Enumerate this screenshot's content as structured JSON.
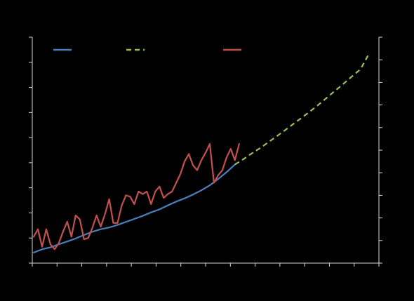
{
  "chart_data": {
    "type": "line",
    "title": "",
    "xlabel": "",
    "ylabel": "",
    "y2label": "",
    "background": "#000000",
    "axis_color": "#d9d9d9",
    "grid": false,
    "legend": "top-left",
    "xlim": [
      0,
      40
    ],
    "ylim": [
      0,
      9
    ],
    "y2lim": [
      0,
      10.5
    ],
    "x_tick_count": 14,
    "y_tick_count": 9,
    "y2_tick_count": 10,
    "series": [
      {
        "name": "",
        "color": "#4a7ebb",
        "dash": false,
        "x": [
          0,
          1,
          2,
          3,
          4,
          5,
          6,
          7,
          8,
          9,
          10,
          11,
          12,
          13,
          14,
          15,
          16,
          17,
          18,
          19,
          20,
          21,
          22,
          23,
          24
        ],
        "y": [
          0.42,
          0.55,
          0.63,
          0.75,
          0.86,
          0.98,
          1.12,
          1.25,
          1.35,
          1.42,
          1.52,
          1.64,
          1.76,
          1.88,
          2.02,
          2.14,
          2.3,
          2.45,
          2.58,
          2.73,
          2.9,
          3.1,
          3.35,
          3.62,
          3.93
        ]
      },
      {
        "name": "",
        "color": "#9bbb59",
        "dash": true,
        "x": [
          24,
          25,
          26,
          27,
          28,
          29,
          30,
          31,
          32,
          33,
          34,
          35,
          36,
          37,
          38,
          39,
          40
        ],
        "y": [
          3.93,
          4.14,
          4.37,
          4.58,
          4.82,
          5.06,
          5.3,
          5.55,
          5.8,
          6.05,
          6.32,
          6.6,
          6.88,
          7.16,
          7.45,
          7.73,
          8.35
        ]
      },
      {
        "name": "",
        "color": "#c0504d",
        "dash": false,
        "x": [
          0,
          0.5,
          1,
          1.5,
          2,
          2.5,
          3,
          3.5,
          4,
          4.5,
          5,
          5.5,
          6,
          6.5,
          7,
          7.5,
          8,
          8.5,
          9,
          9.5,
          10,
          10.5,
          11,
          11.5,
          12,
          12.5,
          13,
          13.5,
          14,
          14.5,
          15,
          15.5,
          16,
          16.5,
          17,
          17.5,
          18,
          18.5,
          19,
          19.5,
          20,
          20.5,
          21,
          21.5,
          22,
          22.5,
          23,
          23.5,
          24,
          24.5
        ],
        "y": [
          1.05,
          1.35,
          0.65,
          1.35,
          0.75,
          0.55,
          0.8,
          1.25,
          1.65,
          1.05,
          1.9,
          1.75,
          0.95,
          1.0,
          1.4,
          1.9,
          1.45,
          1.95,
          2.55,
          1.6,
          1.6,
          2.3,
          2.7,
          2.65,
          2.35,
          2.85,
          2.75,
          2.85,
          2.35,
          2.85,
          3.05,
          2.6,
          2.75,
          2.85,
          3.2,
          3.55,
          4.05,
          4.35,
          3.9,
          3.7,
          4.1,
          4.4,
          4.75,
          3.2,
          3.5,
          3.7,
          4.2,
          4.55,
          4.1,
          4.75
        ]
      }
    ]
  }
}
